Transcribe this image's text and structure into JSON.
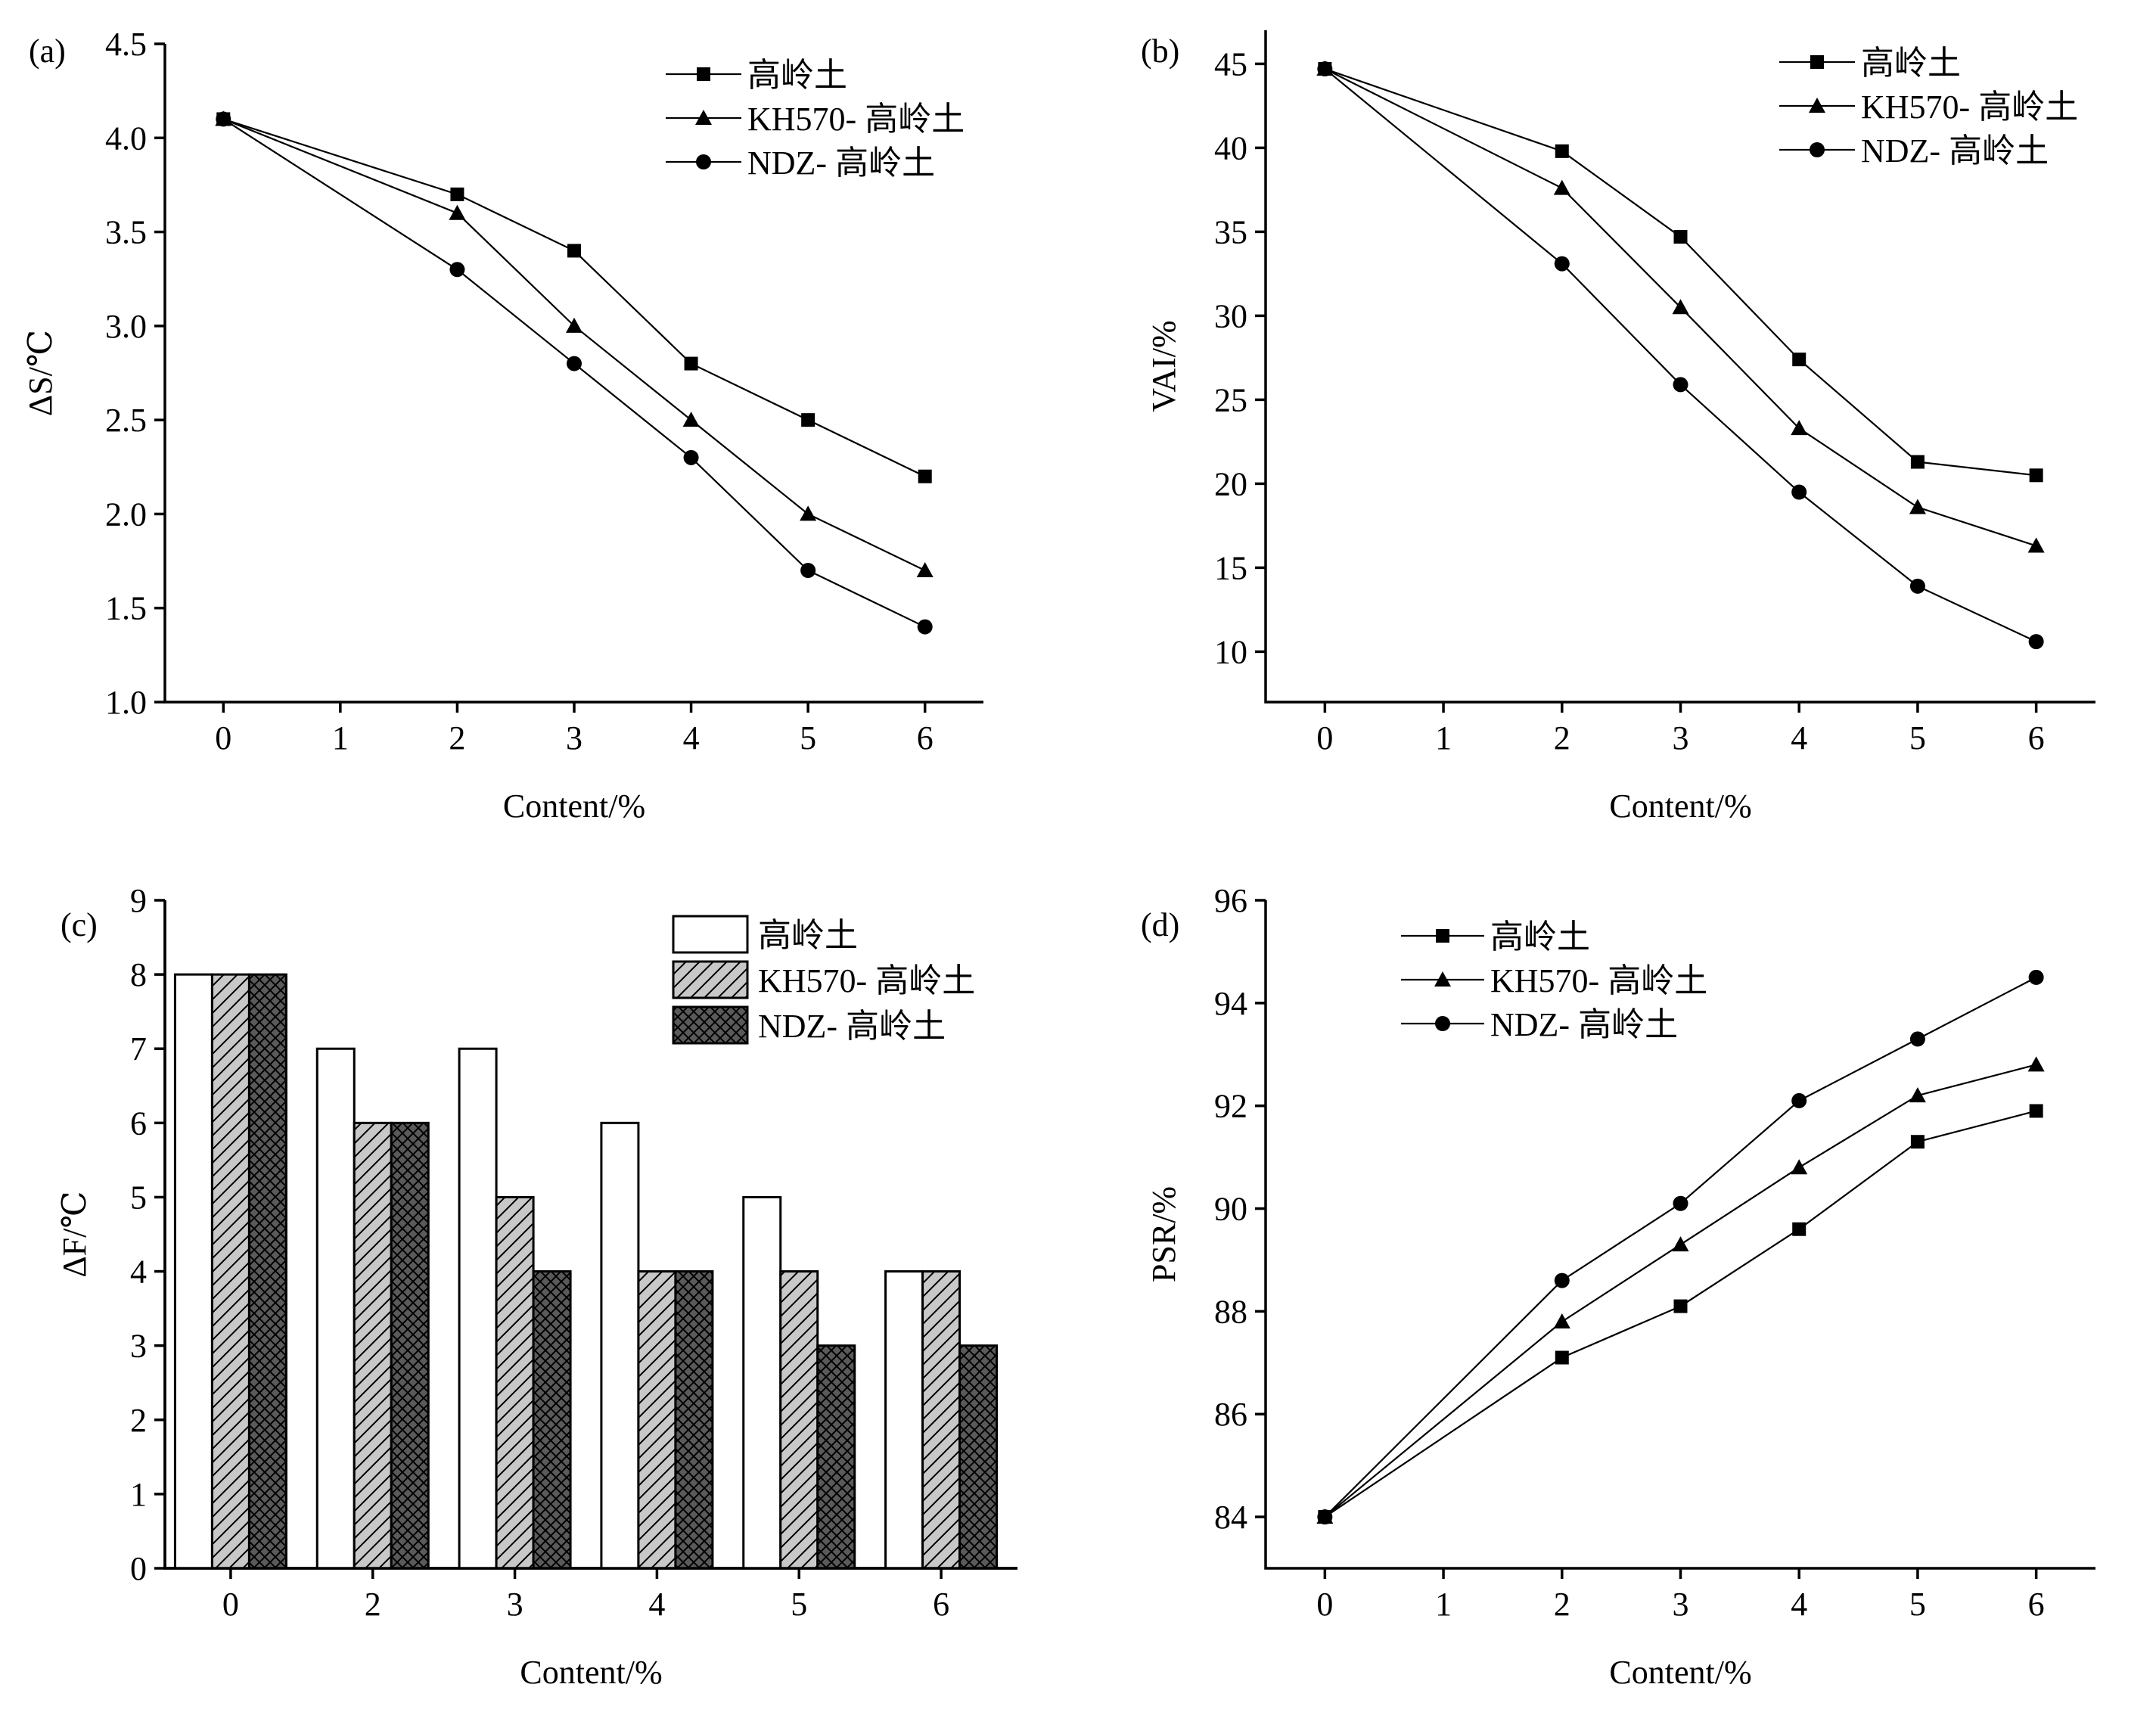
{
  "chart_data": [
    {
      "type": "line",
      "panel_label": "(a)",
      "xlabel": "Content/%",
      "ylabel": "ΔS/℃",
      "xlim": [
        -0.5,
        6.5
      ],
      "ylim": [
        1.0,
        4.5
      ],
      "xticks": [
        0,
        1,
        2,
        3,
        4,
        5,
        6
      ],
      "xtick_labels": [
        "0",
        "1",
        "2",
        "3",
        "4",
        "5",
        "6"
      ],
      "yticks": [
        1.0,
        1.5,
        2.0,
        2.5,
        3.0,
        3.5,
        4.0,
        4.5
      ],
      "ytick_labels": [
        "1.0",
        "1.5",
        "2.0",
        "2.5",
        "3.0",
        "3.5",
        "4.0",
        "4.5"
      ],
      "x": [
        0,
        2,
        3,
        4,
        5,
        6
      ],
      "legend_position": "top-right",
      "grid": false,
      "series": [
        {
          "name": "高岭土",
          "marker": "square",
          "values": [
            4.1,
            3.7,
            3.4,
            2.8,
            2.5,
            2.2
          ]
        },
        {
          "name": "KH570- 高岭土",
          "marker": "triangle",
          "values": [
            4.1,
            3.6,
            3.0,
            2.5,
            2.0,
            1.7
          ]
        },
        {
          "name": "NDZ- 高岭土",
          "marker": "circle",
          "values": [
            4.1,
            3.3,
            2.8,
            2.3,
            1.7,
            1.4
          ]
        }
      ]
    },
    {
      "type": "line",
      "panel_label": "(b)",
      "xlabel": "Content/%",
      "ylabel": "VAI/%",
      "xlim": [
        -0.5,
        6.5
      ],
      "ylim": [
        7,
        47
      ],
      "xticks": [
        0,
        1,
        2,
        3,
        4,
        5,
        6
      ],
      "xtick_labels": [
        "0",
        "1",
        "2",
        "3",
        "4",
        "5",
        "6"
      ],
      "yticks": [
        10,
        15,
        20,
        25,
        30,
        35,
        40,
        45
      ],
      "ytick_labels": [
        "10",
        "15",
        "20",
        "25",
        "30",
        "35",
        "40",
        "45"
      ],
      "x": [
        0,
        2,
        3,
        4,
        5,
        6
      ],
      "legend_position": "top-right",
      "grid": false,
      "series": [
        {
          "name": "高岭土",
          "marker": "square",
          "values": [
            44.7,
            39.8,
            34.7,
            27.4,
            21.3,
            20.5
          ]
        },
        {
          "name": "KH570- 高岭土",
          "marker": "triangle",
          "values": [
            44.7,
            37.6,
            30.5,
            23.3,
            18.6,
            16.3
          ]
        },
        {
          "name": "NDZ- 高岭土",
          "marker": "circle",
          "values": [
            44.7,
            33.1,
            25.9,
            19.5,
            13.9,
            10.6
          ]
        }
      ]
    },
    {
      "type": "bar",
      "panel_label": "(c)",
      "xlabel": "Content/%",
      "ylabel": "ΔF/℃",
      "ylim": [
        0,
        9
      ],
      "yticks": [
        0,
        1,
        2,
        3,
        4,
        5,
        6,
        7,
        8,
        9
      ],
      "ytick_labels": [
        "0",
        "1",
        "2",
        "3",
        "4",
        "5",
        "6",
        "7",
        "8",
        "9"
      ],
      "categories": [
        "0",
        "2",
        "3",
        "4",
        "5",
        "6"
      ],
      "legend_position": "top-right",
      "grid": false,
      "series": [
        {
          "name": "高岭土",
          "pattern": "white",
          "values": [
            8,
            7,
            7,
            6,
            5,
            4
          ]
        },
        {
          "name": "KH570- 高岭土",
          "pattern": "diagonal",
          "values": [
            8,
            6,
            5,
            4,
            4,
            4
          ]
        },
        {
          "name": "NDZ- 高岭土",
          "pattern": "crosshatch",
          "values": [
            8,
            6,
            4,
            4,
            3,
            3
          ]
        }
      ]
    },
    {
      "type": "line",
      "panel_label": "(d)",
      "xlabel": "Content/%",
      "ylabel": "PSR/%",
      "xlim": [
        -0.5,
        6.5
      ],
      "ylim": [
        83,
        96
      ],
      "xticks": [
        0,
        1,
        2,
        3,
        4,
        5,
        6
      ],
      "xtick_labels": [
        "0",
        "1",
        "2",
        "3",
        "4",
        "5",
        "6"
      ],
      "yticks": [
        84,
        86,
        88,
        90,
        92,
        94,
        96
      ],
      "ytick_labels": [
        "84",
        "86",
        "88",
        "90",
        "92",
        "94",
        "96"
      ],
      "x": [
        0,
        2,
        3,
        4,
        5,
        6
      ],
      "legend_position": "top-left",
      "grid": false,
      "series": [
        {
          "name": "高岭土",
          "marker": "square",
          "values": [
            84.0,
            87.1,
            88.1,
            89.6,
            91.3,
            91.9
          ]
        },
        {
          "name": "KH570- 高岭土",
          "marker": "triangle",
          "values": [
            84.0,
            87.8,
            89.3,
            90.8,
            92.2,
            92.8
          ]
        },
        {
          "name": "NDZ- 高岭土",
          "marker": "circle",
          "values": [
            84.0,
            88.6,
            90.1,
            92.1,
            93.3,
            94.5
          ]
        }
      ]
    }
  ]
}
